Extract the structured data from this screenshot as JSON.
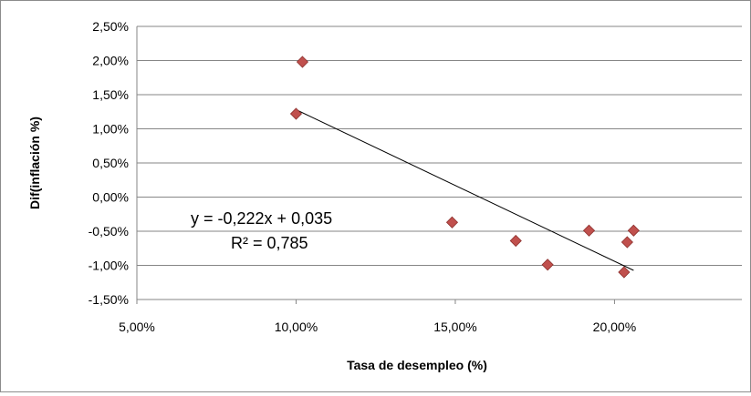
{
  "chart_data": {
    "type": "scatter",
    "xlabel": "Tasa de desempleo (%)",
    "ylabel": "Dif(inflación %)",
    "xlim": [
      0.05,
      0.24
    ],
    "ylim": [
      -0.015,
      0.025
    ],
    "x_ticks": [
      {
        "value": 0.05,
        "label": "5,00%"
      },
      {
        "value": 0.1,
        "label": "10,00%"
      },
      {
        "value": 0.15,
        "label": "15,00%"
      },
      {
        "value": 0.2,
        "label": "20,00%"
      }
    ],
    "y_ticks": [
      {
        "value": 0.025,
        "label": "2,50%"
      },
      {
        "value": 0.02,
        "label": "2,00%"
      },
      {
        "value": 0.015,
        "label": "1,50%"
      },
      {
        "value": 0.01,
        "label": "1,00%"
      },
      {
        "value": 0.005,
        "label": "0,50%"
      },
      {
        "value": 0.0,
        "label": "0,00%"
      },
      {
        "value": -0.005,
        "label": "-0,50%"
      },
      {
        "value": -0.01,
        "label": "-1,00%"
      },
      {
        "value": -0.015,
        "label": "-1,50%"
      }
    ],
    "series": [
      {
        "marker": "diamond",
        "color": "#c0504d",
        "points": [
          {
            "x": 0.102,
            "y": 0.0198
          },
          {
            "x": 0.1,
            "y": 0.0122
          },
          {
            "x": 0.149,
            "y": -0.0037
          },
          {
            "x": 0.169,
            "y": -0.0064
          },
          {
            "x": 0.179,
            "y": -0.0099
          },
          {
            "x": 0.192,
            "y": -0.0049
          },
          {
            "x": 0.203,
            "y": -0.011
          },
          {
            "x": 0.204,
            "y": -0.0066
          },
          {
            "x": 0.206,
            "y": -0.0049
          }
        ]
      }
    ],
    "trendline": {
      "slope": -0.222,
      "intercept": 0.035,
      "x_range": [
        0.1,
        0.206
      ],
      "color": "#000000"
    },
    "annotations": {
      "equation": "y = -0,222x + 0,035",
      "r_squared": "R² = 0,785"
    },
    "grid": {
      "horizontal": true,
      "vertical": false,
      "color": "#868686"
    },
    "legend": "none"
  }
}
